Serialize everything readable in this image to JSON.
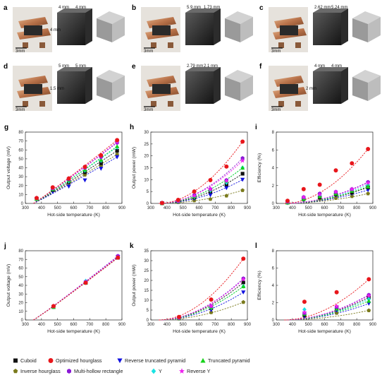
{
  "photo_panels": [
    {
      "label": "a",
      "dims": [
        "4 mm",
        "4 mm",
        "4 mm"
      ],
      "scale": "3mm"
    },
    {
      "label": "b",
      "dims": [
        "5.9 mm",
        "1.73 mm"
      ],
      "scale": "3mm"
    },
    {
      "label": "c",
      "dims": [
        "2.62 mm",
        "5.24 mm"
      ],
      "scale": "3mm"
    },
    {
      "label": "d",
      "dims": [
        "5 mm",
        "5 mm",
        "1.5 mm"
      ],
      "scale": "3mm"
    },
    {
      "label": "e",
      "dims": [
        "2.79 mm",
        "2.1 mm"
      ],
      "scale": "3mm"
    },
    {
      "label": "f",
      "dims": [
        "4 mm",
        "4 mm",
        "2 mm"
      ],
      "scale": "3mm"
    }
  ],
  "legend": [
    {
      "name": "Cuboid",
      "color": "#111111",
      "marker": "square"
    },
    {
      "name": "Optimized hourglass",
      "color": "#e8161b",
      "marker": "circle"
    },
    {
      "name": "Reverse truncated pyramid",
      "color": "#1212e0",
      "marker": "tri-down"
    },
    {
      "name": "Truncated pyramid",
      "color": "#16d21a",
      "marker": "tri-up"
    },
    {
      "name": "Inverse hourglass",
      "color": "#7a7a1c",
      "marker": "pentagon"
    },
    {
      "name": "Multi-hollow rectangle",
      "color": "#8a18d6",
      "marker": "hexagon"
    },
    {
      "name": "Y",
      "color": "#19e3e3",
      "marker": "diamond"
    },
    {
      "name": "Reverse Y",
      "color": "#ee22ee",
      "marker": "star"
    }
  ],
  "chart_data": [
    {
      "label": "g",
      "type": "scatter",
      "xlabel": "Hot-side temperature (K)",
      "ylabel": "Output voltage (mV)",
      "xlim": [
        300,
        900
      ],
      "ylim": [
        0,
        80
      ],
      "xticks": [
        300,
        400,
        500,
        600,
        700,
        800,
        900
      ],
      "yticks": [
        0,
        10,
        20,
        30,
        40,
        50,
        60,
        70,
        80
      ],
      "x": [
        370,
        470,
        570,
        670,
        770,
        870
      ],
      "series": [
        {
          "name": "Cuboid",
          "values": [
            5,
            15,
            24,
            35,
            45,
            59
          ]
        },
        {
          "name": "Optimized hourglass",
          "values": [
            6,
            18,
            28,
            41,
            54,
            71
          ]
        },
        {
          "name": "Reverse truncated pyramid",
          "values": [
            4,
            13,
            19,
            26,
            39,
            52
          ]
        },
        {
          "name": "Truncated pyramid",
          "values": [
            5,
            16,
            26,
            38,
            49,
            64
          ]
        },
        {
          "name": "Inverse hourglass",
          "values": [
            5,
            15,
            23,
            32,
            42,
            55
          ]
        },
        {
          "name": "Multi-hollow rectangle",
          "values": [
            6,
            17,
            27,
            40,
            52,
            68
          ]
        },
        {
          "name": "Y",
          "values": [
            5,
            16,
            25,
            37,
            48,
            63
          ]
        },
        {
          "name": "Reverse Y",
          "values": [
            6,
            17,
            28,
            40,
            53,
            69
          ]
        }
      ]
    },
    {
      "label": "h",
      "type": "scatter",
      "xlabel": "Hot-side temperature (K)",
      "ylabel": "Output power (mW)",
      "xlim": [
        300,
        900
      ],
      "ylim": [
        0,
        30
      ],
      "xticks": [
        300,
        400,
        500,
        600,
        700,
        800,
        900
      ],
      "yticks": [
        0,
        5,
        10,
        15,
        20,
        25,
        30
      ],
      "x": [
        370,
        470,
        570,
        670,
        770,
        870
      ],
      "series": [
        {
          "name": "Cuboid",
          "values": [
            0.1,
            0.8,
            2.5,
            5,
            8,
            12.5
          ]
        },
        {
          "name": "Optimized hourglass",
          "values": [
            0.2,
            1.5,
            5,
            9.8,
            15.5,
            26
          ]
        },
        {
          "name": "Reverse truncated pyramid",
          "values": [
            0.1,
            0.6,
            2,
            3.5,
            6.5,
            10
          ]
        },
        {
          "name": "Truncated pyramid",
          "values": [
            0.1,
            0.9,
            3,
            6,
            9.5,
            15
          ]
        },
        {
          "name": "Inverse hourglass",
          "values": [
            0.1,
            0.5,
            1.2,
            1.8,
            3.2,
            5.5
          ]
        },
        {
          "name": "Multi-hollow rectangle",
          "values": [
            0.2,
            1,
            3.5,
            6,
            9.8,
            19
          ]
        },
        {
          "name": "Y",
          "values": [
            0.1,
            0.9,
            2.8,
            5.5,
            8.8,
            15
          ]
        },
        {
          "name": "Reverse Y",
          "values": [
            0.2,
            1,
            3.2,
            6,
            9.5,
            18
          ]
        }
      ]
    },
    {
      "label": "i",
      "type": "scatter",
      "xlabel": "Hot-side temperature (K)",
      "ylabel": "Efficiency (%)",
      "xlim": [
        300,
        900
      ],
      "ylim": [
        0,
        8
      ],
      "xticks": [
        300,
        400,
        500,
        600,
        700,
        800,
        900
      ],
      "yticks": [
        0,
        2,
        4,
        6,
        8
      ],
      "x": [
        370,
        470,
        570,
        670,
        770,
        870
      ],
      "series": [
        {
          "name": "Cuboid",
          "values": [
            0.1,
            0.5,
            0.7,
            1,
            1.2,
            1.8
          ]
        },
        {
          "name": "Optimized hourglass",
          "values": [
            0.3,
            1.6,
            2.1,
            3.7,
            4.5,
            6.1
          ]
        },
        {
          "name": "Reverse truncated pyramid",
          "values": [
            0.05,
            0.4,
            0.6,
            0.9,
            1.1,
            1.5
          ]
        },
        {
          "name": "Truncated pyramid",
          "values": [
            0.1,
            0.5,
            0.8,
            1.1,
            1.4,
            1.9
          ]
        },
        {
          "name": "Inverse hourglass",
          "values": [
            0.1,
            0.4,
            0.5,
            0.6,
            0.8,
            1.1
          ]
        },
        {
          "name": "Multi-hollow rectangle",
          "values": [
            0.2,
            0.7,
            1.1,
            1.3,
            1.6,
            2.4
          ]
        },
        {
          "name": "Y",
          "values": [
            0.15,
            0.6,
            0.9,
            1.2,
            1.5,
            2.1
          ]
        },
        {
          "name": "Reverse Y",
          "values": [
            0.2,
            0.7,
            1,
            1.3,
            1.6,
            2.3
          ]
        }
      ]
    },
    {
      "label": "j",
      "type": "scatter",
      "xlabel": "Hot-side temperature (K)",
      "ylabel": "Output voltage (mV)",
      "xlim": [
        300,
        900
      ],
      "ylim": [
        0,
        80
      ],
      "xticks": [
        300,
        400,
        500,
        600,
        700,
        800,
        900
      ],
      "yticks": [
        0,
        10,
        20,
        30,
        40,
        50,
        60,
        70,
        80
      ],
      "x": [
        475,
        675,
        875
      ],
      "series": [
        {
          "name": "Cuboid",
          "values": [
            15,
            43,
            72
          ]
        },
        {
          "name": "Optimized hourglass",
          "values": [
            16,
            43,
            72
          ]
        },
        {
          "name": "Reverse truncated pyramid",
          "values": [
            15,
            43,
            73
          ]
        },
        {
          "name": "Truncated pyramid",
          "values": [
            15,
            43,
            73
          ]
        },
        {
          "name": "Inverse hourglass",
          "values": [
            15,
            44,
            72
          ]
        },
        {
          "name": "Multi-hollow rectangle",
          "values": [
            16,
            44,
            74
          ]
        },
        {
          "name": "Y",
          "values": [
            15,
            45,
            73
          ]
        },
        {
          "name": "Reverse Y",
          "values": [
            16,
            44,
            73
          ]
        }
      ]
    },
    {
      "label": "k",
      "type": "scatter",
      "xlabel": "Hot-side temperature (K)",
      "ylabel": "Output power (mW)",
      "xlim": [
        300,
        900
      ],
      "ylim": [
        0,
        35
      ],
      "xticks": [
        300,
        400,
        500,
        600,
        700,
        800,
        900
      ],
      "yticks": [
        0,
        5,
        10,
        15,
        20,
        25,
        30,
        35
      ],
      "x": [
        475,
        675,
        875
      ],
      "series": [
        {
          "name": "Cuboid",
          "values": [
            1,
            6,
            19
          ]
        },
        {
          "name": "Optimized hourglass",
          "values": [
            1.5,
            10.3,
            31
          ]
        },
        {
          "name": "Reverse truncated pyramid",
          "values": [
            0.8,
            5,
            14
          ]
        },
        {
          "name": "Truncated pyramid",
          "values": [
            1,
            6.5,
            17
          ]
        },
        {
          "name": "Inverse hourglass",
          "values": [
            0.6,
            3.8,
            9
          ]
        },
        {
          "name": "Multi-hollow rectangle",
          "values": [
            1.1,
            7,
            21
          ]
        },
        {
          "name": "Y",
          "values": [
            1,
            6.2,
            17
          ]
        },
        {
          "name": "Reverse Y",
          "values": [
            1.1,
            7,
            20.5
          ]
        }
      ]
    },
    {
      "label": "l",
      "type": "scatter",
      "xlabel": "Hot-side temperature (K)",
      "ylabel": "Efficiency (%)",
      "xlim": [
        300,
        900
      ],
      "ylim": [
        0,
        8
      ],
      "xticks": [
        300,
        400,
        500,
        600,
        700,
        800,
        900
      ],
      "yticks": [
        0,
        2,
        4,
        6,
        8
      ],
      "x": [
        475,
        675,
        875
      ],
      "series": [
        {
          "name": "Cuboid",
          "values": [
            0.6,
            1.4,
            2.6
          ]
        },
        {
          "name": "Optimized hourglass",
          "values": [
            2.1,
            3.2,
            4.7
          ]
        },
        {
          "name": "Reverse truncated pyramid",
          "values": [
            0.4,
            1.1,
            1.9
          ]
        },
        {
          "name": "Truncated pyramid",
          "values": [
            0.7,
            1.3,
            2.2
          ]
        },
        {
          "name": "Inverse hourglass",
          "values": [
            0.4,
            0.8,
            1.1
          ]
        },
        {
          "name": "Multi-hollow rectangle",
          "values": [
            0.8,
            1.5,
            2.9
          ]
        },
        {
          "name": "Y",
          "values": [
            1.2,
            1.4,
            2.4
          ]
        },
        {
          "name": "Reverse Y",
          "values": [
            0.9,
            1.6,
            2.8
          ]
        }
      ]
    }
  ]
}
